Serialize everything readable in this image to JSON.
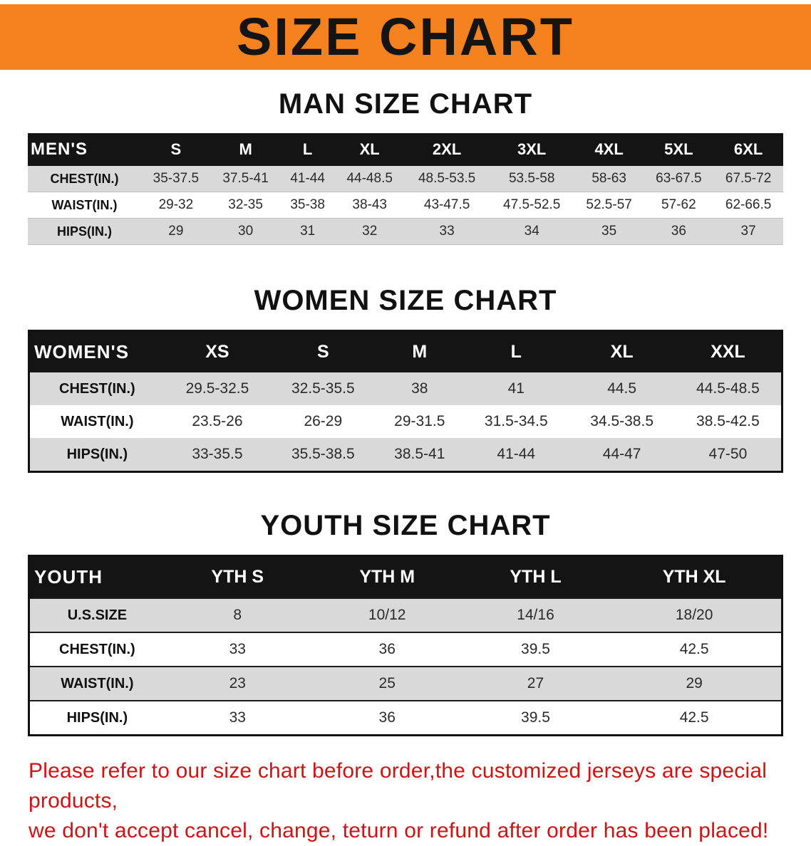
{
  "banner": {
    "title": "SIZE CHART"
  },
  "sections": [
    {
      "heading": "MAN SIZE CHART",
      "table": {
        "header_label": "MEN'S",
        "columns": [
          "S",
          "M",
          "L",
          "XL",
          "2XL",
          "3XL",
          "4XL",
          "5XL",
          "6XL"
        ],
        "rows": [
          {
            "label": "CHEST(IN.)",
            "values": [
              "35-37.5",
              "37.5-41",
              "41-44",
              "44-48.5",
              "48.5-53.5",
              "53.5-58",
              "58-63",
              "63-67.5",
              "67.5-72"
            ]
          },
          {
            "label": "WAIST(IN.)",
            "values": [
              "29-32",
              "32-35",
              "35-38",
              "38-43",
              "43-47.5",
              "47.5-52.5",
              "52.5-57",
              "57-62",
              "62-66.5"
            ]
          },
          {
            "label": "HIPS(IN.)",
            "values": [
              "29",
              "30",
              "31",
              "32",
              "33",
              "34",
              "35",
              "36",
              "37"
            ]
          }
        ]
      }
    },
    {
      "heading": "WOMEN SIZE CHART",
      "table": {
        "header_label": "WOMEN'S",
        "columns": [
          "XS",
          "S",
          "M",
          "L",
          "XL",
          "XXL"
        ],
        "rows": [
          {
            "label": "CHEST(IN.)",
            "values": [
              "29.5-32.5",
              "32.5-35.5",
              "38",
              "41",
              "44.5",
              "44.5-48.5"
            ]
          },
          {
            "label": "WAIST(IN.)",
            "values": [
              "23.5-26",
              "26-29",
              "29-31.5",
              "31.5-34.5",
              "34.5-38.5",
              "38.5-42.5"
            ]
          },
          {
            "label": "HIPS(IN.)",
            "values": [
              "33-35.5",
              "35.5-38.5",
              "38.5-41",
              "41-44",
              "44-47",
              "47-50"
            ]
          }
        ]
      }
    },
    {
      "heading": "YOUTH SIZE CHART",
      "table": {
        "header_label": "YOUTH",
        "columns": [
          "YTH S",
          "YTH M",
          "YTH L",
          "YTH XL"
        ],
        "rows": [
          {
            "label": "U.S.SIZE",
            "values": [
              "8",
              "10/12",
              "14/16",
              "18/20"
            ]
          },
          {
            "label": "CHEST(IN.)",
            "values": [
              "33",
              "36",
              "39.5",
              "42.5"
            ]
          },
          {
            "label": "WAIST(IN.)",
            "values": [
              "23",
              "25",
              "27",
              "29"
            ]
          },
          {
            "label": "HIPS(IN.)",
            "values": [
              "33",
              "36",
              "39.5",
              "42.5"
            ]
          }
        ]
      }
    }
  ],
  "footer": {
    "line1": "Please refer to our size chart before order,the customized jerseys are special products,",
    "line2": "we don't accept cancel, change, teturn or refund after order has been placed!"
  },
  "colors": {
    "banner_orange": "#F5821F",
    "table_header_black": "#141414",
    "row_gray": "#D9D9D9",
    "notice_red": "#CC1414"
  }
}
